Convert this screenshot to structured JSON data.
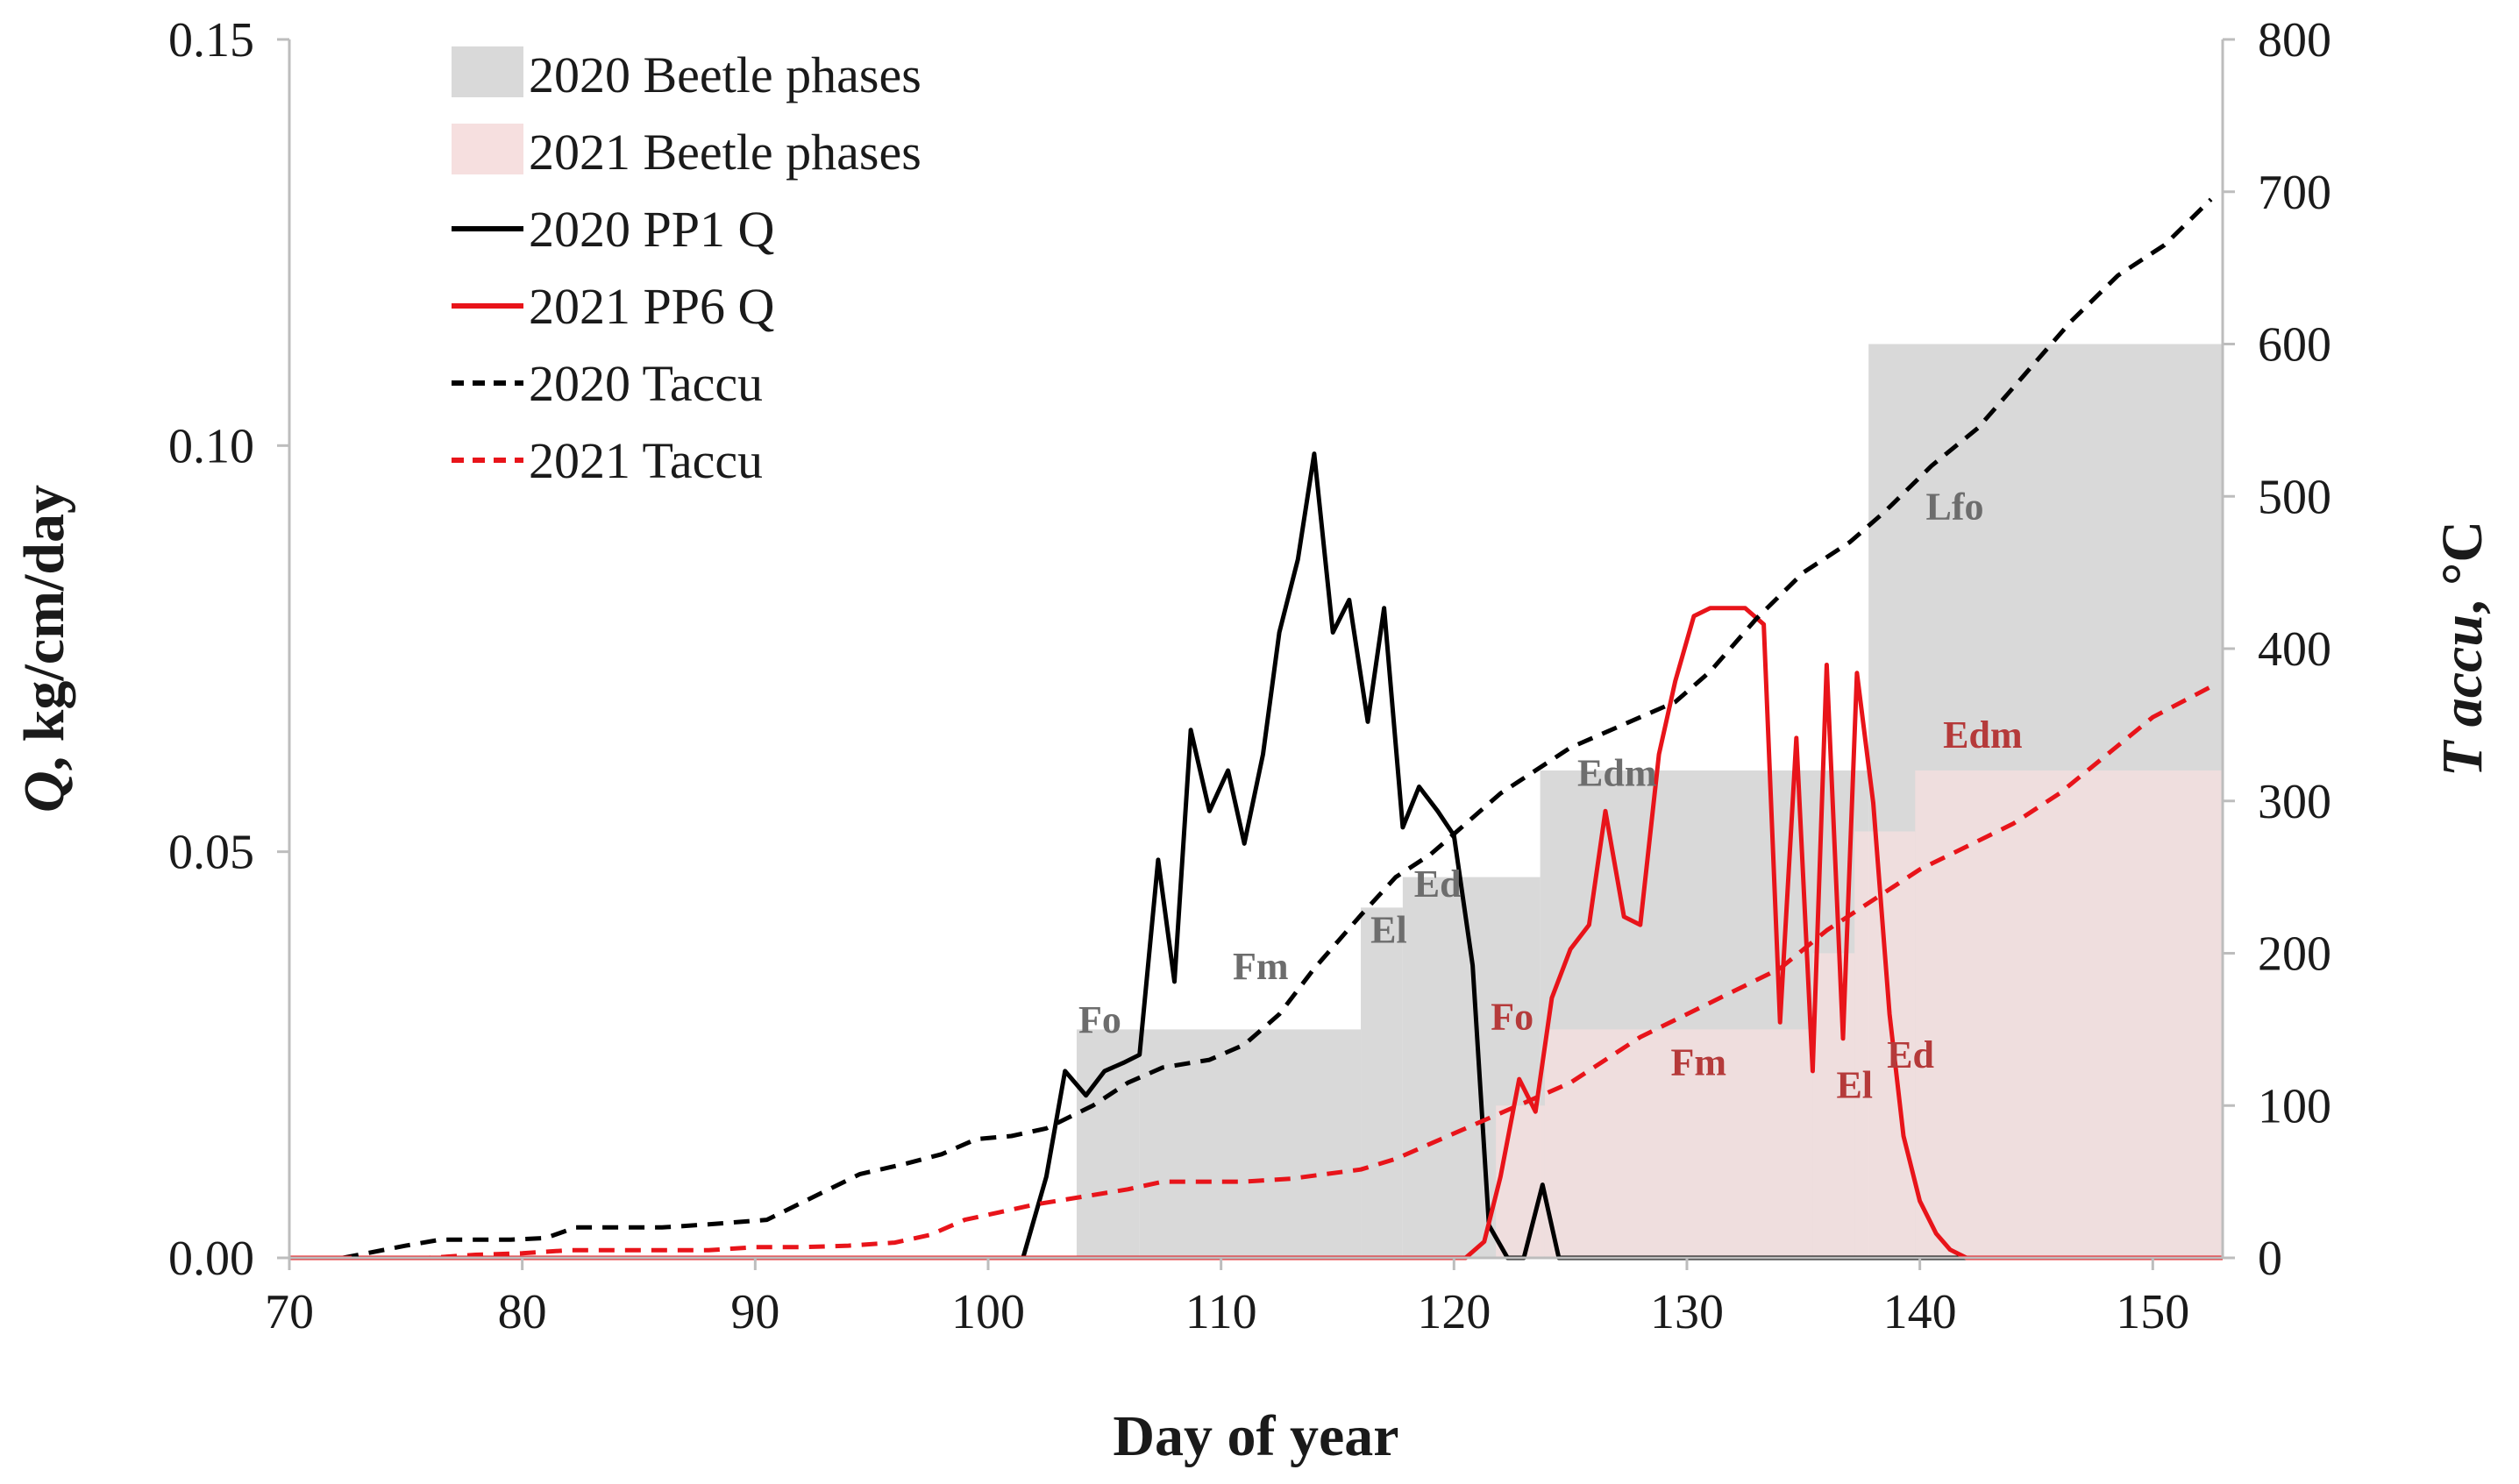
{
  "chart_data": {
    "type": "line",
    "title": "",
    "xlabel": "Day of year",
    "ylabel_left_italic": "Q",
    "ylabel_left_rest": ", kg/cm/day",
    "ylabel_right_italic": "T accu",
    "ylabel_right_rest": ", °C",
    "xlim": [
      70,
      153
    ],
    "ylim_left": [
      0,
      0.15
    ],
    "ylim_right": [
      0,
      800
    ],
    "xticks": [
      70,
      80,
      90,
      100,
      110,
      120,
      130,
      140,
      150
    ],
    "xtick_labels": [
      "70",
      "80",
      "90",
      "100",
      "110",
      "120",
      "130",
      "140",
      "150"
    ],
    "yticks_left": [
      0,
      0.05,
      0.1,
      0.15
    ],
    "ytick_labels_left": [
      "0.00",
      "0.05",
      "0.10",
      "0.15"
    ],
    "yticks_right": [
      0,
      100,
      200,
      300,
      400,
      500,
      600,
      700,
      800
    ],
    "ytick_labels_right": [
      "0",
      "100",
      "200",
      "300",
      "400",
      "500",
      "600",
      "700",
      "800"
    ],
    "legend": {
      "placement": "top-left",
      "entries": [
        {
          "label": "2020 Beetle phases",
          "kind": "patch",
          "color": "#d9d9d9"
        },
        {
          "label": "2021 Beetle phases",
          "kind": "patch",
          "color": "#f6dfdf"
        },
        {
          "label": "2020 PP1 Q",
          "kind": "solid",
          "color": "#000000"
        },
        {
          "label": "2021 PP6 Q",
          "kind": "solid",
          "color": "#e8141a"
        },
        {
          "label": "2020 Taccu",
          "kind": "dashed",
          "color": "#000000"
        },
        {
          "label": "2021 Taccu",
          "kind": "dashed",
          "color": "#e8141a"
        }
      ]
    },
    "phases_2020": {
      "name": "2020 Beetle phases",
      "color": "#d9d9d9",
      "axis": "right",
      "blocks": [
        {
          "label": "Fo",
          "start": 103.8,
          "end": 106.5,
          "top": 150
        },
        {
          "label": "Fm",
          "start": 106.5,
          "end": 116.0,
          "top": 150
        },
        {
          "label": "El",
          "start": 116.0,
          "end": 117.8,
          "top": 230
        },
        {
          "label": "Ed",
          "start": 117.8,
          "end": 123.7,
          "top": 250
        },
        {
          "label": "Edm",
          "start": 123.7,
          "end": 137.8,
          "top": 320
        },
        {
          "label": "Lfo",
          "start": 137.8,
          "end": 153.0,
          "top": 600
        }
      ]
    },
    "phases_2021": {
      "name": "2021 Beetle phases",
      "color": "#f6dfdf",
      "axis": "right",
      "blocks": [
        {
          "label": "Fo",
          "start": 121.8,
          "end": 123.9,
          "top": 100
        },
        {
          "label": "Fm",
          "start": 123.9,
          "end": 135.4,
          "top": 150
        },
        {
          "label": "El",
          "start": 135.4,
          "end": 137.2,
          "top": 200
        },
        {
          "label": "Ed",
          "start": 137.2,
          "end": 139.8,
          "top": 280
        },
        {
          "label": "Edm",
          "start": 139.8,
          "end": 153.0,
          "top": 320
        }
      ]
    },
    "phase_labels_2020": [
      {
        "text": "Fo",
        "x": 104.8,
        "y": 148
      },
      {
        "text": "Fm",
        "x": 111.7,
        "y": 183
      },
      {
        "text": "El",
        "x": 117.2,
        "y": 207
      },
      {
        "text": "Ed",
        "x": 119.3,
        "y": 237
      },
      {
        "text": "Edm",
        "x": 127.0,
        "y": 310
      },
      {
        "text": "Lfo",
        "x": 141.5,
        "y": 485
      }
    ],
    "phase_labels_2021": [
      {
        "text": "Fo",
        "x": 122.5,
        "y": 150
      },
      {
        "text": "Fm",
        "x": 130.5,
        "y": 120
      },
      {
        "text": "El",
        "x": 137.2,
        "y": 105
      },
      {
        "text": "Ed",
        "x": 139.6,
        "y": 125
      },
      {
        "text": "Edm",
        "x": 142.7,
        "y": 335
      }
    ],
    "series": [
      {
        "name": "2020 PP1 Q",
        "style": "solid",
        "color": "#000000",
        "axis": "left",
        "x": [
          101.5,
          102.5,
          103.3,
          104.2,
          105.0,
          105.8,
          106.5,
          107.3,
          108.0,
          108.7,
          109.5,
          110.3,
          111.0,
          111.8,
          112.5,
          113.3,
          114.0,
          114.8,
          115.5,
          116.3,
          117.0,
          117.8,
          118.5,
          119.3,
          120.0,
          120.8,
          121.5,
          122.3,
          123.0,
          123.8,
          124.5,
          125.3,
          126.0,
          126.5,
          127.3,
          128.0,
          128.8,
          130.0,
          140.0,
          153.0
        ],
        "values": [
          0,
          0.01,
          0.023,
          0.02,
          0.023,
          0.024,
          0.025,
          0.049,
          0.034,
          0.065,
          0.055,
          0.06,
          0.051,
          0.062,
          0.077,
          0.086,
          0.099,
          0.077,
          0.081,
          0.066,
          0.08,
          0.053,
          0.058,
          0.055,
          0.052,
          0.036,
          0.004,
          0.0,
          0.0,
          0.009,
          0.0,
          0,
          0,
          0,
          0,
          0,
          0,
          0,
          0,
          0
        ]
      },
      {
        "name": "2021 PP6 Q",
        "style": "solid",
        "color": "#e8141a",
        "axis": "left",
        "x": [
          70.0,
          100.0,
          120.5,
          121.3,
          122.0,
          122.8,
          123.5,
          124.2,
          125.0,
          125.8,
          126.5,
          127.3,
          128.0,
          128.8,
          129.5,
          130.3,
          131.0,
          131.8,
          132.5,
          133.3,
          134.0,
          134.7,
          135.4,
          136.0,
          136.7,
          137.3,
          138.0,
          138.7,
          139.3,
          140.0,
          140.7,
          141.3,
          142.0,
          142.7,
          143.4,
          144.1,
          153.0
        ],
        "values": [
          0,
          0,
          0,
          0.002,
          0.01,
          0.022,
          0.018,
          0.032,
          0.038,
          0.041,
          0.055,
          0.042,
          0.041,
          0.062,
          0.071,
          0.079,
          0.08,
          0.08,
          0.08,
          0.078,
          0.029,
          0.064,
          0.023,
          0.073,
          0.027,
          0.072,
          0.056,
          0.03,
          0.015,
          0.007,
          0.003,
          0.001,
          0.0,
          0,
          0,
          0,
          0
        ],
        "note": "x aligned to axis scale"
      },
      {
        "name": "2020 Taccu",
        "style": "dashed",
        "color": "#000000",
        "axis": "right",
        "x": [
          72.3,
          75.0,
          76.5,
          78.0,
          79.5,
          81.0,
          82.3,
          84.0,
          86.0,
          88.0,
          90.5,
          92.5,
          94.5,
          96.5,
          98.0,
          99.5,
          101.0,
          102.5,
          104.5,
          106.0,
          107.5,
          109.5,
          111.0,
          112.5,
          114.0,
          116.0,
          117.5,
          119.0,
          120.5,
          122.0,
          123.5,
          125.0,
          126.5,
          128.0,
          129.5,
          131.0,
          133.0,
          135.0,
          137.0,
          138.5,
          140.5,
          142.5,
          144.5,
          146.5,
          148.5,
          150.5,
          152.5
        ],
        "values": [
          0,
          8,
          12,
          12,
          12,
          13,
          20,
          20,
          20,
          22,
          25,
          40,
          55,
          62,
          68,
          78,
          80,
          85,
          100,
          115,
          125,
          130,
          140,
          160,
          190,
          225,
          250,
          265,
          285,
          305,
          320,
          335,
          345,
          355,
          365,
          385,
          420,
          450,
          470,
          490,
          520,
          545,
          580,
          615,
          645,
          665,
          695
        ]
      },
      {
        "name": "2021 Taccu",
        "style": "dashed",
        "color": "#e8141a",
        "axis": "right",
        "x": [
          72.0,
          74.0,
          76.0,
          78.0,
          80.0,
          82.0,
          84.0,
          86.0,
          88.0,
          90.0,
          92.0,
          94.0,
          96.0,
          97.5,
          99.0,
          100.5,
          102.0,
          104.0,
          106.0,
          107.5,
          109.0,
          111.0,
          113.0,
          114.5,
          116.0,
          117.5,
          119.0,
          120.5,
          122.0,
          123.5,
          125.0,
          126.5,
          128.0,
          130.0,
          132.0,
          134.0,
          136.0,
          138.0,
          140.0,
          142.0,
          144.0,
          146.0,
          148.0,
          150.0,
          152.5
        ],
        "values": [
          0,
          0,
          0,
          2,
          3,
          5,
          5,
          5,
          5,
          7,
          7,
          8,
          10,
          15,
          25,
          30,
          35,
          40,
          45,
          50,
          50,
          50,
          52,
          55,
          58,
          65,
          75,
          85,
          95,
          105,
          115,
          130,
          145,
          160,
          175,
          190,
          215,
          235,
          255,
          270,
          285,
          305,
          330,
          355,
          375
        ]
      }
    ]
  }
}
